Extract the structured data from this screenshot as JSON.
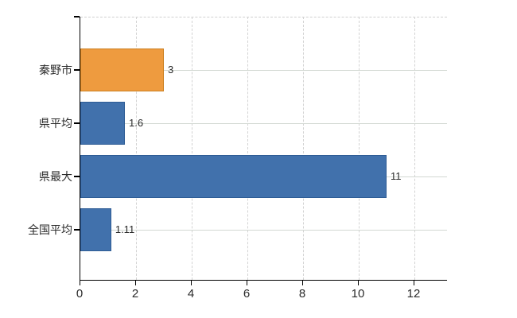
{
  "chart_data": {
    "type": "bar",
    "orientation": "horizontal",
    "title": "",
    "categories": [
      "秦野市",
      "県平均",
      "県最大",
      "全国平均"
    ],
    "values": [
      3,
      1.6,
      11,
      1.11
    ],
    "value_labels": [
      "3",
      "1.6",
      "11",
      "1.11"
    ],
    "bar_colors": [
      "#ee9b3f",
      "#4171ac",
      "#4171ac",
      "#4171ac"
    ],
    "bar_border_colors": [
      "#cc7f1f",
      "#2e5c95",
      "#2e5c95",
      "#2e5c95"
    ],
    "x_ticks": [
      "0",
      "2",
      "4",
      "6",
      "8",
      "10",
      "12"
    ],
    "x_tick_values": [
      0,
      2,
      4,
      6,
      8,
      10,
      12
    ],
    "xlim": [
      0,
      13.2
    ],
    "grid": true,
    "legend": false,
    "colors": {
      "axis": "#000000",
      "grid_horizontal": "#d2d8d2",
      "grid_vertical": "#d3d3d3",
      "text": "#2b2b2b",
      "background": "#ffffff"
    }
  }
}
